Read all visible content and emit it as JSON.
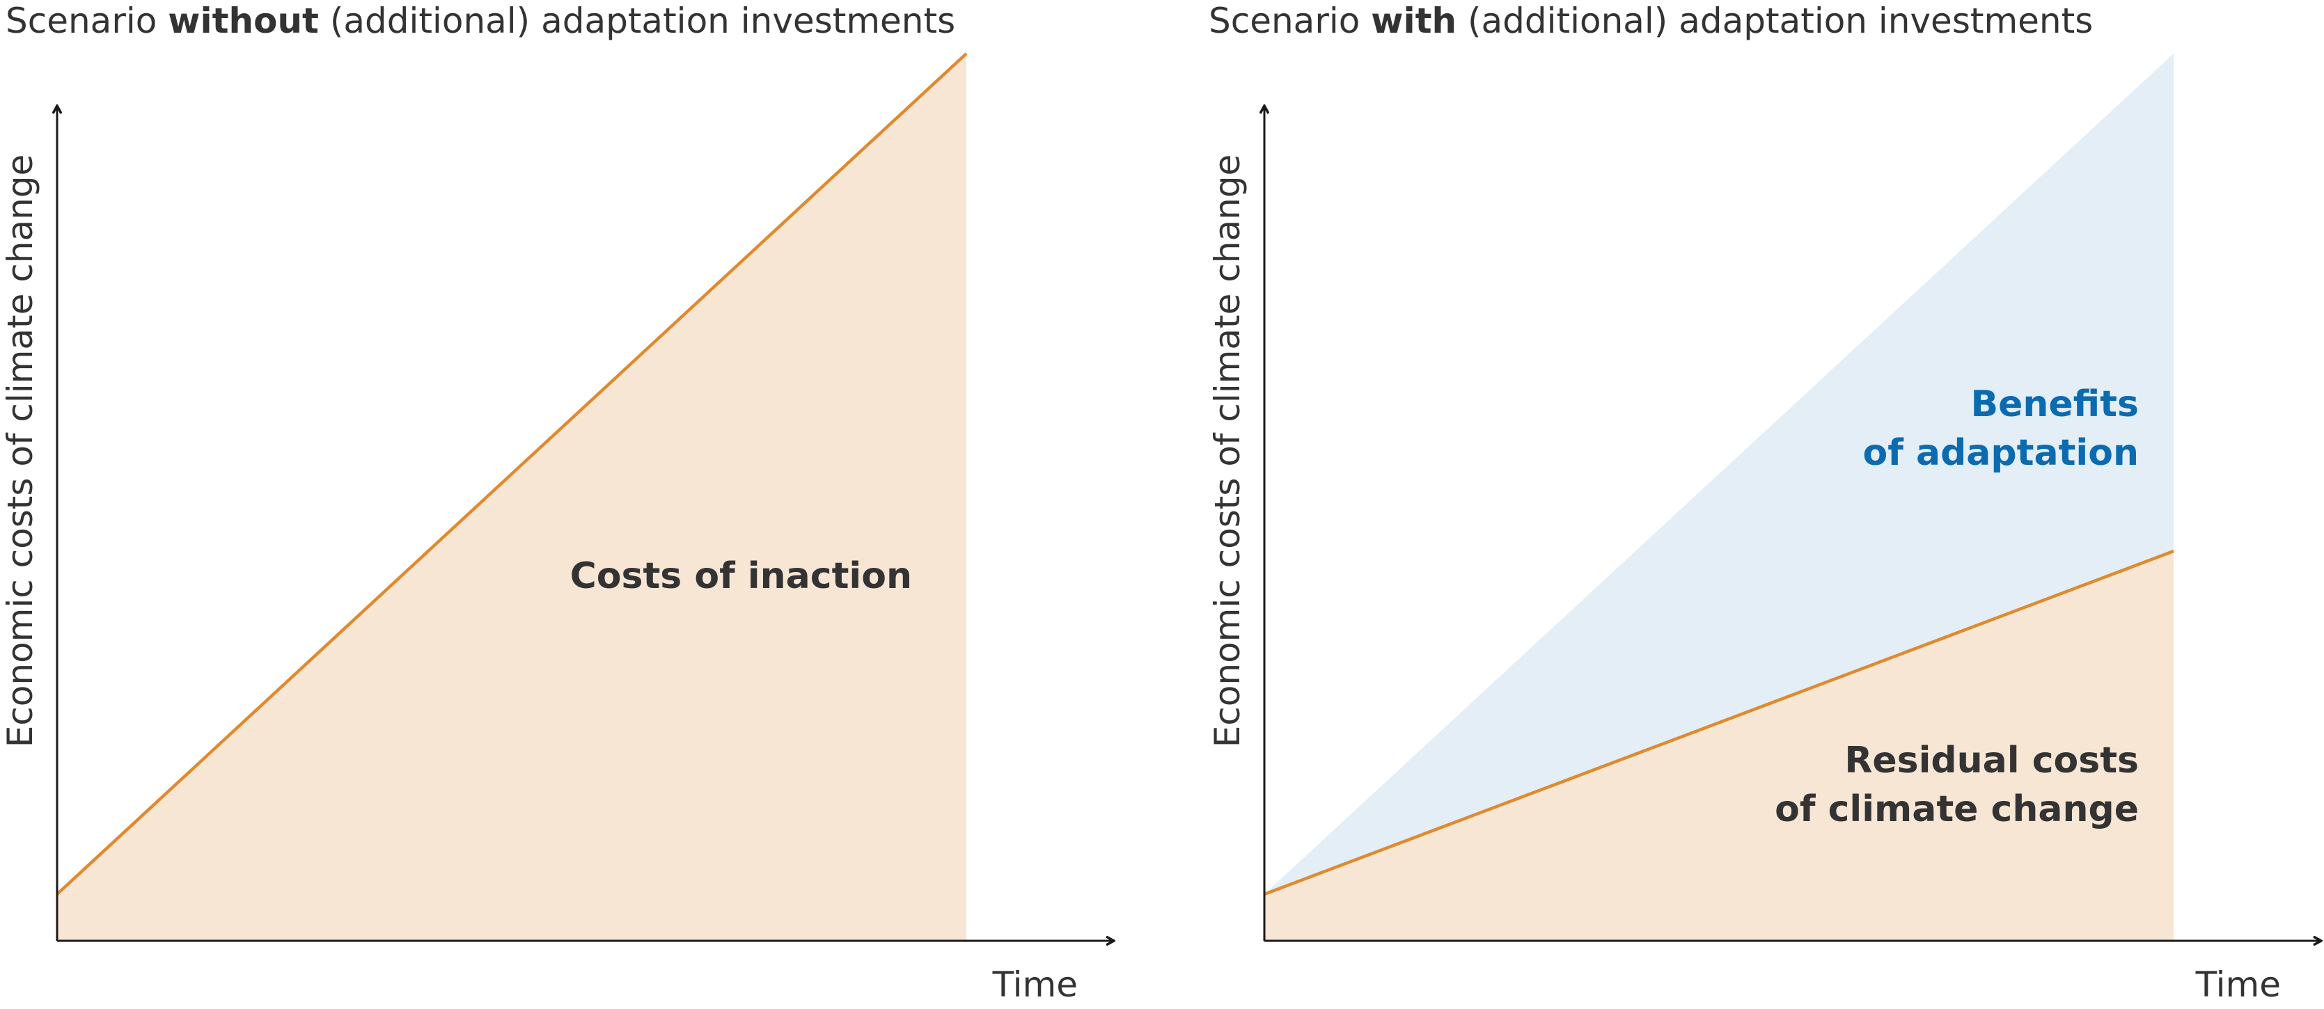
{
  "colors": {
    "cost_fill": "#f8e6d5",
    "benefit_fill": "#e3eef7",
    "cost_line": "#e08a2e",
    "axis": "#1a1a1a",
    "text": "#333333",
    "benefit_text": "#0a6bb0"
  },
  "panels": [
    {
      "title_prefix": "Scenario ",
      "title_bold": "without",
      "title_suffix": " (additional) adaptation investments",
      "y_axis_label": "Economic costs of climate change",
      "x_axis_label": "Time",
      "region_label_1": "Costs of inaction"
    },
    {
      "title_prefix": "Scenario ",
      "title_bold": "with",
      "title_suffix": " (additional) adaptation investments",
      "y_axis_label": "Economic costs of climate change",
      "x_axis_label": "Time",
      "region_benefit_line1": "Benefits",
      "region_benefit_line2": "of adaptation",
      "region_residual_line1": "Residual costs",
      "region_residual_line2": "of climate change"
    }
  ]
}
